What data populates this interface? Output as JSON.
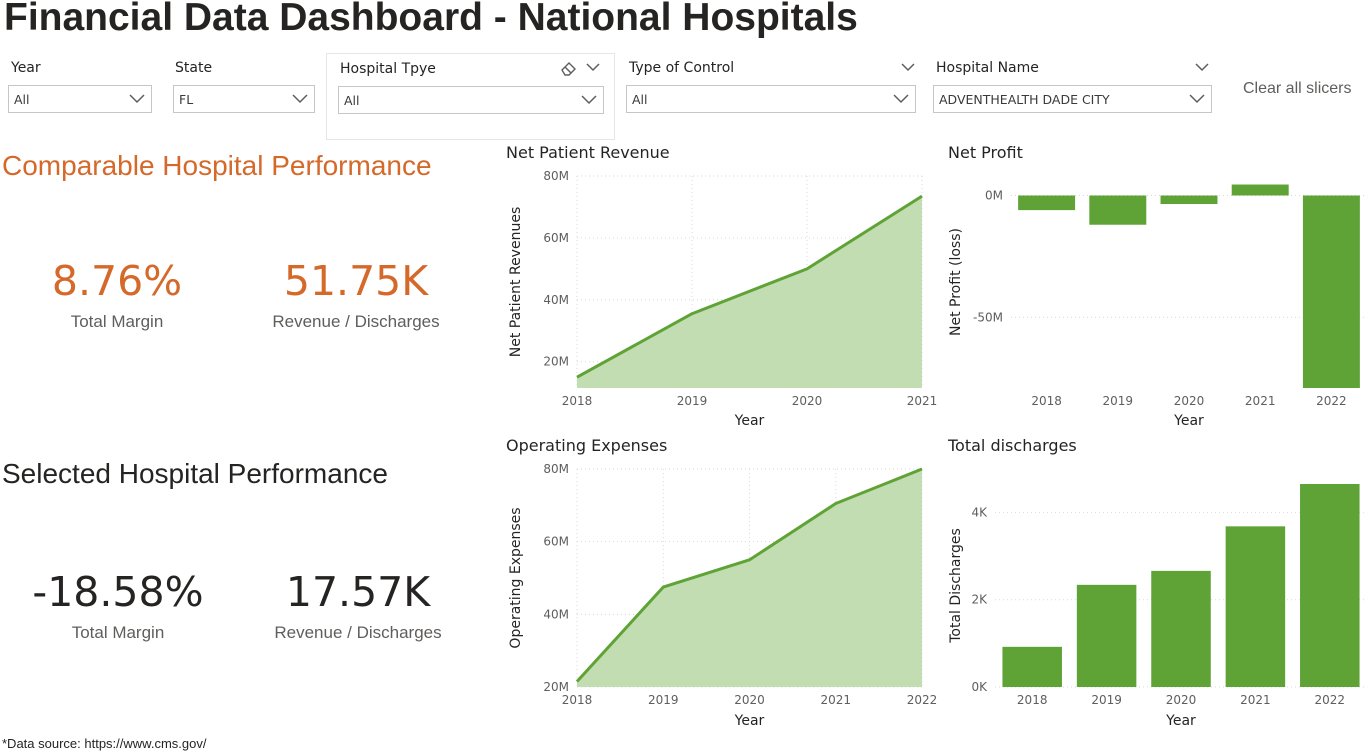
{
  "title": "Financial Data Dashboard - National Hospitals",
  "slicers": [
    {
      "label": "Year",
      "value": "All"
    },
    {
      "label": "State",
      "value": "FL"
    },
    {
      "label": "Hospital Tpye",
      "value": "All"
    },
    {
      "label": "Type of Control",
      "value": "All"
    },
    {
      "label": "Hospital Name",
      "value": "ADVENTHEALTH DADE CITY"
    }
  ],
  "clear_all": "Clear all slicers",
  "comparable": {
    "heading": "Comparable Hospital Performance",
    "total_margin_value": "8.76%",
    "total_margin_label": "Total Margin",
    "rev_discharge_value": "51.75K",
    "rev_discharge_label": "Revenue / Discharges",
    "color": "#d4692a"
  },
  "selected": {
    "heading": "Selected Hospital Performance",
    "total_margin_value": "-18.58%",
    "total_margin_label": "Total Margin",
    "rev_discharge_value": "17.57K",
    "rev_discharge_label": "Revenue / Discharges",
    "color": "#252423"
  },
  "colors": {
    "bar": "#5fa336",
    "line": "#5fa336",
    "area_fill": "#c1ddb1",
    "grid": "#d9d9d9"
  },
  "chart_data": [
    {
      "id": "net-patient-revenue",
      "type": "area",
      "title": "Net Patient Revenue",
      "xlabel": "Year",
      "ylabel": "Net Patient Revenues",
      "categories": [
        "2018",
        "2019",
        "2020",
        "2021"
      ],
      "values": [
        15000000,
        35500000,
        50000000,
        73500000
      ],
      "yticks": [
        20000000,
        40000000,
        60000000,
        80000000
      ],
      "yticklabels": [
        "20M",
        "40M",
        "60M",
        "80M"
      ],
      "ylim": [
        11500000,
        80000000
      ]
    },
    {
      "id": "net-profit",
      "type": "bar",
      "title": "Net Profit",
      "xlabel": "Year",
      "ylabel": "Net Profit (loss)",
      "categories": [
        "2018",
        "2019",
        "2020",
        "2021",
        "2022"
      ],
      "values": [
        -6000000,
        -12000000,
        -3500000,
        4500000,
        -79000000
      ],
      "yticks": [
        0,
        -50000000
      ],
      "yticklabels": [
        "0M",
        "-50M"
      ],
      "ylim": [
        -79000000,
        8000000
      ]
    },
    {
      "id": "operating-expenses",
      "type": "area",
      "title": "Operating Expenses",
      "xlabel": "Year",
      "ylabel": "Operating Expenses",
      "categories": [
        "2018",
        "2019",
        "2020",
        "2021",
        "2022"
      ],
      "values": [
        21500000,
        47500000,
        55000000,
        70500000,
        80000000
      ],
      "yticks": [
        20000000,
        40000000,
        60000000,
        80000000
      ],
      "yticklabels": [
        "20M",
        "40M",
        "60M",
        "80M"
      ],
      "ylim": [
        20000000,
        80000000
      ]
    },
    {
      "id": "total-discharges",
      "type": "bar",
      "title": "Total discharges",
      "xlabel": "Year",
      "ylabel": "Total Discharges",
      "categories": [
        "2018",
        "2019",
        "2020",
        "2021",
        "2022"
      ],
      "values": [
        920,
        2340,
        2660,
        3680,
        4650
      ],
      "yticks": [
        0,
        2000,
        4000
      ],
      "yticklabels": [
        "0K",
        "2K",
        "4K"
      ],
      "ylim": [
        0,
        4650
      ]
    }
  ],
  "footnote": "*Data source: https://www.cms.gov/"
}
